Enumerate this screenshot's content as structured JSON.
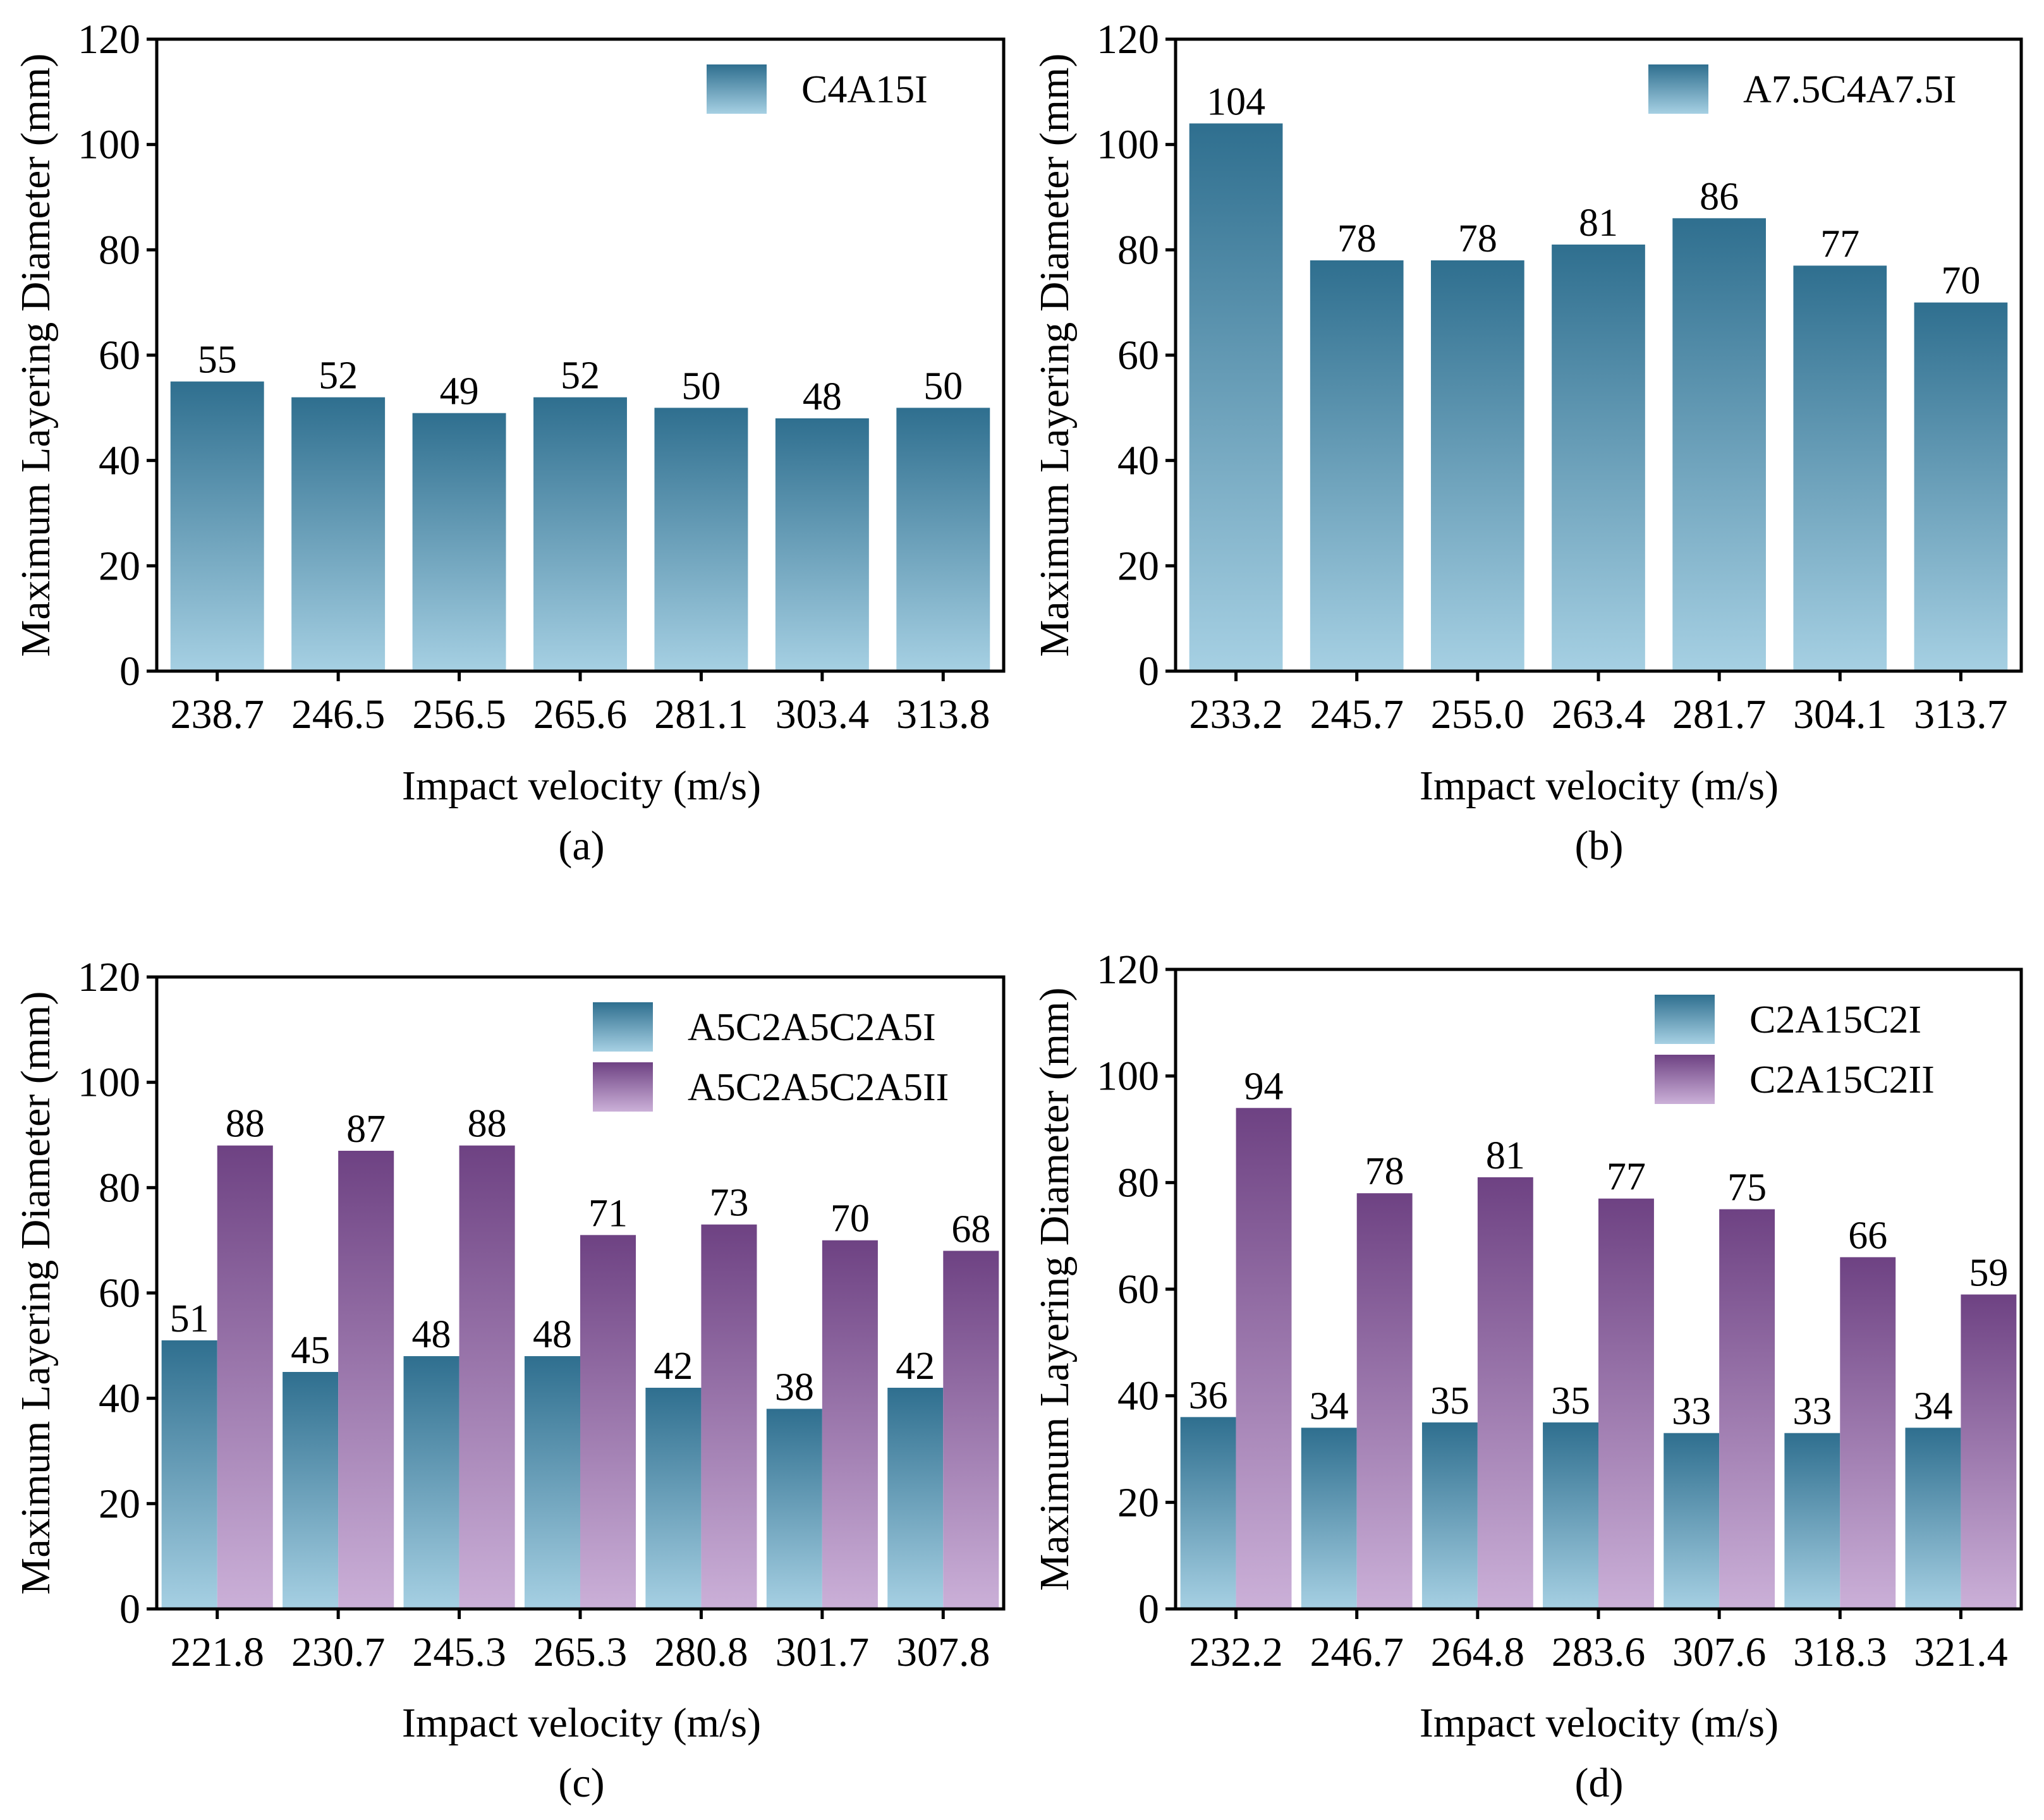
{
  "colors": {
    "teal_top": "#2f6f8f",
    "teal_bottom": "#a6d0e3",
    "purple_top": "#6e4283",
    "purple_bottom": "#cbb0d8",
    "axis": "#000000"
  },
  "chart_data": [
    {
      "panel": "(a)",
      "type": "bar",
      "categories": [
        "238.7",
        "246.5",
        "256.5",
        "265.6",
        "281.1",
        "303.4",
        "313.8"
      ],
      "series": [
        {
          "name": "C4A15I",
          "color": "teal",
          "values": [
            55,
            52,
            49,
            52,
            50,
            48,
            50
          ]
        }
      ],
      "xlabel": "Impact velocity (m/s)",
      "ylabel": "Maximum Layering Diameter (mm)",
      "ylim": [
        0,
        120
      ],
      "yticks": [
        0,
        20,
        40,
        60,
        80,
        100,
        120
      ],
      "legend_position": "top-right"
    },
    {
      "panel": "(b)",
      "type": "bar",
      "categories": [
        "233.2",
        "245.7",
        "255.0",
        "263.4",
        "281.7",
        "304.1",
        "313.7"
      ],
      "series": [
        {
          "name": "A7.5C4A7.5I",
          "color": "teal",
          "values": [
            104,
            78,
            78,
            81,
            86,
            77,
            70
          ]
        }
      ],
      "xlabel": "Impact velocity (m/s)",
      "ylabel": "Maximum Layering Diameter (mm)",
      "ylim": [
        0,
        120
      ],
      "yticks": [
        0,
        20,
        40,
        60,
        80,
        100,
        120
      ],
      "legend_position": "top-right"
    },
    {
      "panel": "(c)",
      "type": "bar",
      "categories": [
        "221.8",
        "230.7",
        "245.3",
        "265.3",
        "280.8",
        "301.7",
        "307.8"
      ],
      "series": [
        {
          "name": "A5C2A5C2A5I",
          "color": "teal",
          "values": [
            51,
            45,
            48,
            48,
            42,
            38,
            42
          ]
        },
        {
          "name": "A5C2A5C2A5II",
          "color": "purple",
          "values": [
            88,
            87,
            88,
            71,
            73,
            70,
            68
          ]
        }
      ],
      "xlabel": "Impact velocity (m/s)",
      "ylabel": "Maximum Layering Diameter (mm)",
      "ylim": [
        0,
        120
      ],
      "yticks": [
        0,
        20,
        40,
        60,
        80,
        100,
        120
      ],
      "legend_position": "top-right"
    },
    {
      "panel": "(d)",
      "type": "bar",
      "categories": [
        "232.2",
        "246.7",
        "264.8",
        "283.6",
        "307.6",
        "318.3",
        "321.4"
      ],
      "series": [
        {
          "name": "C2A15C2I",
          "color": "teal",
          "values": [
            36,
            34,
            35,
            35,
            33,
            33,
            34
          ]
        },
        {
          "name": "C2A15C2II",
          "color": "purple",
          "values": [
            94,
            78,
            81,
            77,
            75,
            66,
            59
          ]
        }
      ],
      "xlabel": "Impact velocity (m/s)",
      "ylabel": "Maximum Layering Diameter (mm)",
      "ylim": [
        0,
        120
      ],
      "yticks": [
        0,
        20,
        40,
        60,
        80,
        100,
        120
      ],
      "legend_position": "top-right"
    }
  ]
}
